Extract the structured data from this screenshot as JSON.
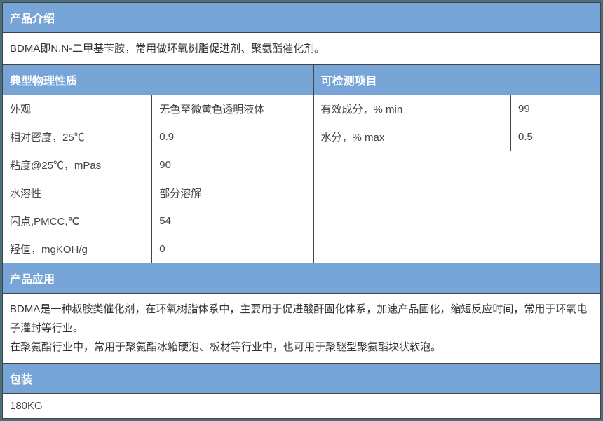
{
  "colors": {
    "header_bg": "#78a5d8",
    "header_text": "#ffffff",
    "cell_bg": "#ffffff",
    "cell_text": "#333333",
    "border": "#444444",
    "page_bg": "#4a6f7a"
  },
  "typography": {
    "base_fontsize": 15,
    "header_fontsize": 16,
    "header_weight": "bold",
    "font_family": "Microsoft YaHei"
  },
  "layout": {
    "columns": 4,
    "col_widths_pct": [
      25,
      27,
      33,
      15
    ]
  },
  "sections": {
    "intro": {
      "header": "产品介绍",
      "body": "BDMA即N,N-二甲基苄胺，常用做环氧树脂促进剂、聚氨酯催化剂。"
    },
    "phys_header": "典型物理性质",
    "test_header": "可检测项目",
    "phys_rows": [
      {
        "label": "外观",
        "value": "无色至微黄色透明液体"
      },
      {
        "label": "相对密度，25℃",
        "value": "0.9"
      },
      {
        "label": "粘度@25℃，mPas",
        "value": "90"
      },
      {
        "label": "水溶性",
        "value": "部分溶解"
      },
      {
        "label": "闪点,PMCC,℃",
        "value": "54"
      },
      {
        "label": "羟值，mgKOH/g",
        "value": "0"
      }
    ],
    "test_rows": [
      {
        "label": "有效成分，% min",
        "value": "99"
      },
      {
        "label": "水分，% max",
        "value": "0.5"
      }
    ],
    "application": {
      "header": "产品应用",
      "body": "BDMA是一种叔胺类催化剂，在环氧树脂体系中，主要用于促进酸酐固化体系，加速产品固化，缩短反应时间，常用于环氧电子灌封等行业。\n在聚氨酯行业中，常用于聚氨酯冰箱硬泡、板材等行业中，也可用于聚醚型聚氨酯块状软泡。"
    },
    "packaging": {
      "header": "包装",
      "body": "180KG"
    }
  }
}
